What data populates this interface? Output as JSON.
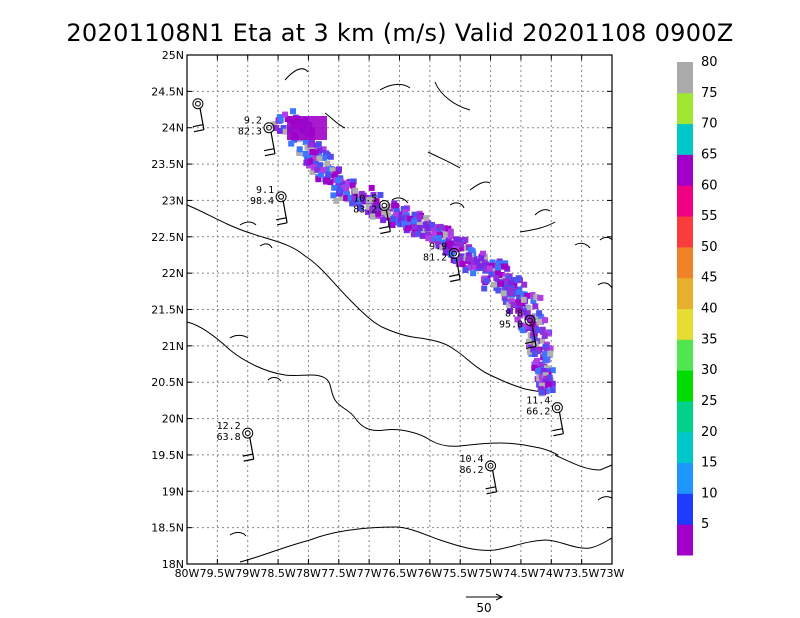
{
  "chart_data": {
    "type": "map",
    "title": "20201108N1 Eta at 3 km (m/s) Valid 20201108 0900Z",
    "x_ticks": [
      "80W",
      "79.5W",
      "79W",
      "78.5W",
      "78W",
      "77.5W",
      "77W",
      "76.5W",
      "76W",
      "75.5W",
      "75W",
      "74.5W",
      "74W",
      "73.5W",
      "73W"
    ],
    "y_ticks": [
      "18N",
      "18.5N",
      "19N",
      "19.5N",
      "20N",
      "20.5N",
      "21N",
      "21.5N",
      "22N",
      "22.5N",
      "23N",
      "23.5N",
      "24N",
      "24.5N",
      "25N"
    ],
    "xlim": [
      -80,
      -73
    ],
    "ylim": [
      18,
      25
    ],
    "grid": true,
    "colorbar": {
      "labels": [
        "5",
        "10",
        "15",
        "20",
        "25",
        "30",
        "35",
        "40",
        "45",
        "50",
        "55",
        "60",
        "65",
        "70",
        "75",
        "80"
      ],
      "colors": [
        "#a000c8",
        "#1e3cff",
        "#1e96ff",
        "#00c8c8",
        "#00d28c",
        "#00dc00",
        "#50e650",
        "#e6dc32",
        "#e6af2d",
        "#f08228",
        "#fa3c3c",
        "#f00082",
        "#a000c8",
        "#00c8c8",
        "#a0e632",
        "#aaaaaa"
      ]
    },
    "stations": [
      {
        "lon": -79.82,
        "lat": 24.33,
        "label_top": "",
        "label_bot": ""
      },
      {
        "lon": -78.65,
        "lat": 24.0,
        "label_top": "9.2",
        "label_bot": "82.3"
      },
      {
        "lon": -78.45,
        "lat": 23.05,
        "label_top": "9.1",
        "label_bot": "98.4"
      },
      {
        "lon": -76.75,
        "lat": 22.93,
        "label_top": "10.5",
        "label_bot": "83.2"
      },
      {
        "lon": -75.6,
        "lat": 22.27,
        "label_top": "9.9",
        "label_bot": "81.2"
      },
      {
        "lon": -74.35,
        "lat": 21.35,
        "label_top": "8.8",
        "label_bot": "95.0"
      },
      {
        "lon": -73.9,
        "lat": 20.15,
        "label_top": "11.4",
        "label_bot": "66.2"
      },
      {
        "lon": -79.0,
        "lat": 19.8,
        "label_top": "12.2",
        "label_bot": "63.8"
      },
      {
        "lon": -75.0,
        "lat": 19.35,
        "label_top": "10.4",
        "label_bot": "86.2"
      }
    ],
    "reference_vector": {
      "value": "50"
    }
  }
}
